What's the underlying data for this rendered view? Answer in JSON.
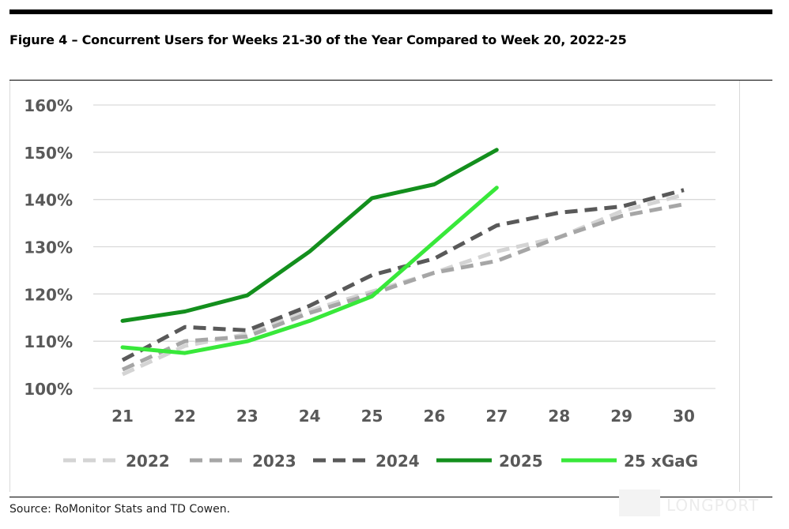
{
  "figure": {
    "title": "Figure 4 – Concurrent Users for Weeks 21-30 of the Year Compared to Week 20, 2022-25",
    "source": "Source: RoMonitor Stats and TD Cowen.",
    "watermark": "LONGPORT"
  },
  "chart_data": {
    "type": "line",
    "title": "",
    "xlabel": "",
    "ylabel": "",
    "x": [
      21,
      22,
      23,
      24,
      25,
      26,
      27,
      28,
      29,
      30
    ],
    "y_ticks": [
      "100%",
      "110%",
      "120%",
      "130%",
      "140%",
      "150%",
      "160%"
    ],
    "ylim": [
      1.0,
      1.6
    ],
    "grid": true,
    "legend_position": "bottom",
    "series": [
      {
        "name": "2022",
        "color": "#d4d4d4",
        "style": "dashed",
        "values": [
          1.03,
          1.09,
          1.115,
          1.165,
          1.205,
          1.245,
          1.29,
          1.32,
          1.375,
          1.41
        ]
      },
      {
        "name": "2023",
        "color": "#a6a6a6",
        "style": "dashed",
        "values": [
          1.04,
          1.1,
          1.11,
          1.16,
          1.2,
          1.245,
          1.27,
          1.32,
          1.365,
          1.39
        ]
      },
      {
        "name": "2024",
        "color": "#595959",
        "style": "dashed",
        "values": [
          1.06,
          1.13,
          1.123,
          1.175,
          1.24,
          1.275,
          1.345,
          1.372,
          1.385,
          1.42
        ]
      },
      {
        "name": "2025",
        "color": "#138f1d",
        "style": "solid",
        "values": [
          1.143,
          1.163,
          1.197,
          1.29,
          1.403,
          1.432,
          1.505,
          null,
          null,
          null
        ]
      },
      {
        "name": "25 xGaG",
        "color": "#38e83a",
        "style": "solid",
        "values": [
          1.087,
          1.075,
          1.1,
          1.143,
          1.195,
          1.31,
          1.425,
          null,
          null,
          null
        ]
      }
    ]
  }
}
